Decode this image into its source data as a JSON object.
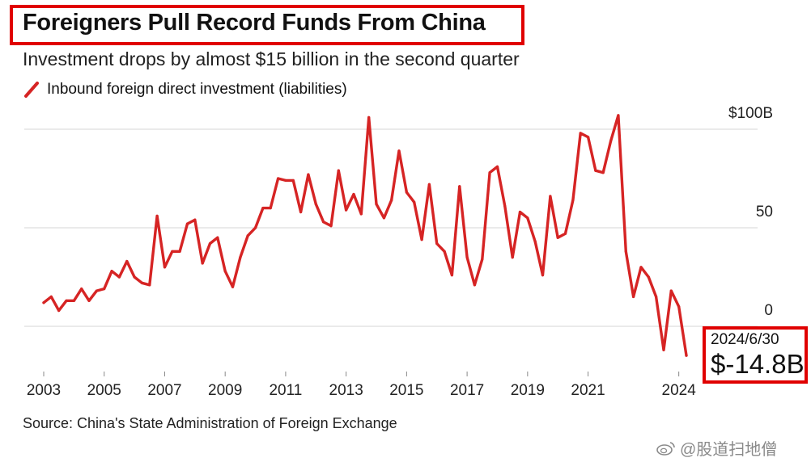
{
  "header": {
    "title": "Foreigners Pull Record Funds From China",
    "subtitle": "Investment drops by almost $15 billion in the second quarter"
  },
  "legend": {
    "label": "Inbound foreign direct investment (liabilities)"
  },
  "callout": {
    "date": "2024/6/30",
    "value": "$-14.8B"
  },
  "footer": {
    "source": "Source: China's State Administration of Foreign Exchange"
  },
  "watermark": {
    "text": "@股道扫地僧"
  },
  "colors": {
    "line": "#d62424",
    "highlight": "#e00000",
    "grid": "#d4d4d4"
  },
  "chart_data": {
    "type": "line",
    "title": "Foreigners Pull Record Funds From China",
    "subtitle": "Investment drops by almost $15 billion in the second quarter",
    "ylabel": "",
    "xlabel": "",
    "ylim": [
      -25,
      108
    ],
    "xlim": [
      2003,
      2025
    ],
    "grid": true,
    "y_ticks": [
      {
        "value": 0,
        "label": "0"
      },
      {
        "value": 50,
        "label": "50"
      },
      {
        "value": 100,
        "label": "$100B"
      }
    ],
    "x_ticks": [
      {
        "value": 2003,
        "label": "2003"
      },
      {
        "value": 2005,
        "label": "2005"
      },
      {
        "value": 2007,
        "label": "2007"
      },
      {
        "value": 2009,
        "label": "2009"
      },
      {
        "value": 2011,
        "label": "2011"
      },
      {
        "value": 2013,
        "label": "2013"
      },
      {
        "value": 2015,
        "label": "2015"
      },
      {
        "value": 2017,
        "label": "2017"
      },
      {
        "value": 2019,
        "label": "2019"
      },
      {
        "value": 2021,
        "label": "2021"
      },
      {
        "value": 2024,
        "label": "2024"
      }
    ],
    "series": [
      {
        "name": "Inbound foreign direct investment (liabilities)",
        "x": [
          2003.0,
          2003.25,
          2003.5,
          2003.75,
          2004.0,
          2004.25,
          2004.5,
          2004.75,
          2005.0,
          2005.25,
          2005.5,
          2005.75,
          2006.0,
          2006.25,
          2006.5,
          2006.75,
          2007.0,
          2007.25,
          2007.5,
          2007.75,
          2008.0,
          2008.25,
          2008.5,
          2008.75,
          2009.0,
          2009.25,
          2009.5,
          2009.75,
          2010.0,
          2010.25,
          2010.5,
          2010.75,
          2011.0,
          2011.25,
          2011.5,
          2011.75,
          2012.0,
          2012.25,
          2012.5,
          2012.75,
          2013.0,
          2013.25,
          2013.5,
          2013.75,
          2014.0,
          2014.25,
          2014.5,
          2014.75,
          2015.0,
          2015.25,
          2015.5,
          2015.75,
          2016.0,
          2016.25,
          2016.5,
          2016.75,
          2017.0,
          2017.25,
          2017.5,
          2017.75,
          2018.0,
          2018.25,
          2018.5,
          2018.75,
          2019.0,
          2019.25,
          2019.5,
          2019.75,
          2020.0,
          2020.25,
          2020.5,
          2020.75,
          2021.0,
          2021.25,
          2021.5,
          2021.75,
          2022.0,
          2022.25,
          2022.5,
          2022.75,
          2023.0,
          2023.25,
          2023.5,
          2023.75,
          2024.0,
          2024.25
        ],
        "values": [
          12,
          15,
          8,
          13,
          13,
          19,
          13,
          18,
          19,
          28,
          25,
          33,
          25,
          22,
          21,
          56,
          30,
          38,
          38,
          52,
          54,
          32,
          42,
          45,
          28,
          20,
          35,
          46,
          50,
          60,
          60,
          75,
          74,
          74,
          58,
          77,
          62,
          53,
          51,
          79,
          59,
          67,
          57,
          106,
          62,
          55,
          64,
          89,
          68,
          63,
          44,
          72,
          42,
          38,
          26,
          71,
          35,
          21,
          34,
          78,
          81,
          61,
          35,
          58,
          55,
          43,
          26,
          66,
          45,
          47,
          64,
          98,
          96,
          79,
          78,
          94,
          107,
          38,
          15,
          30,
          25,
          15,
          -12,
          18,
          10,
          -14.8
        ]
      }
    ]
  }
}
